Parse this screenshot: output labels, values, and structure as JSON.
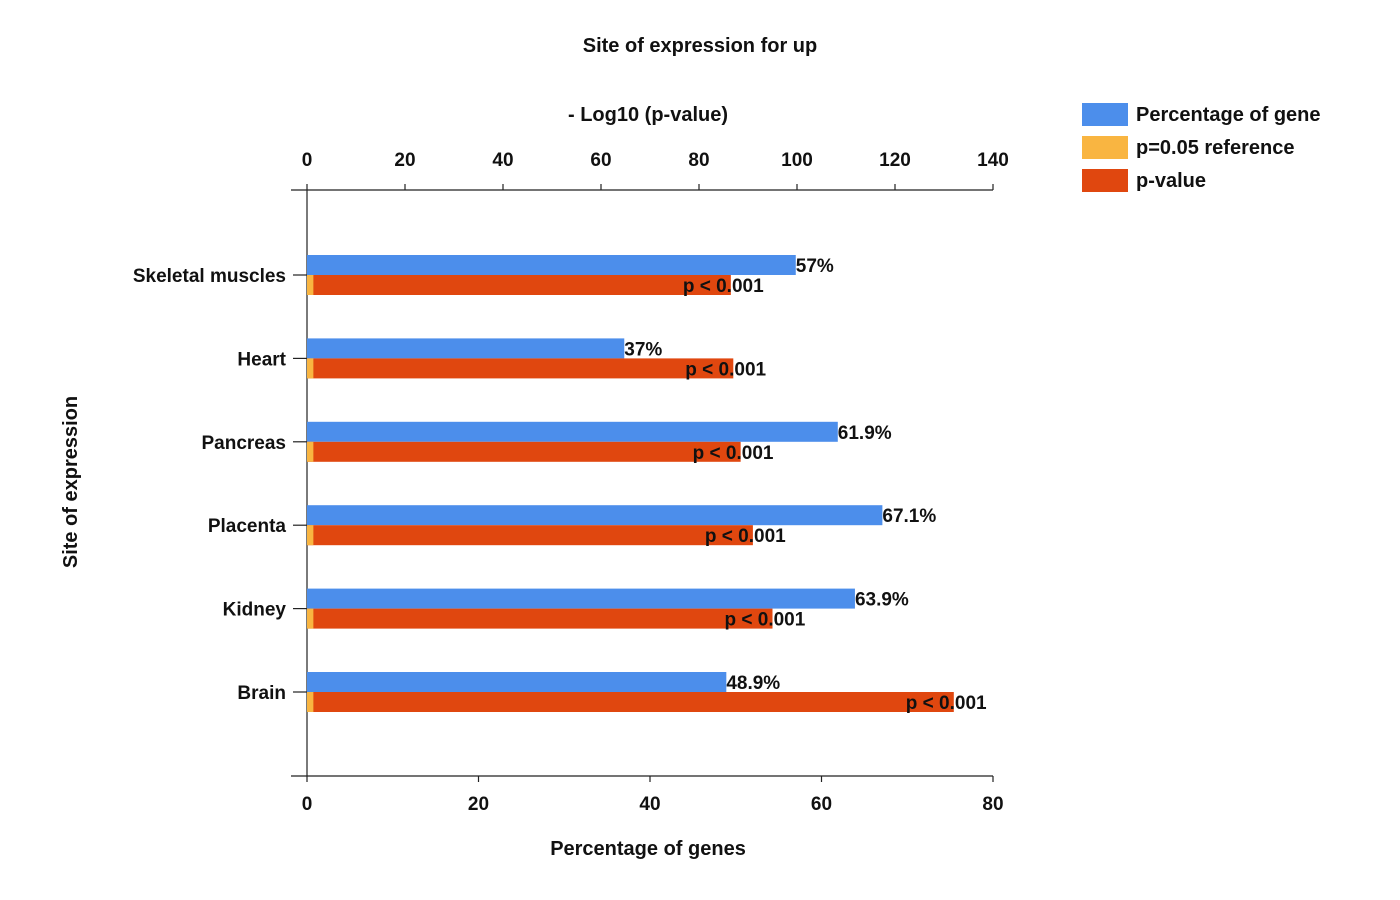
{
  "chart_data": {
    "type": "bar",
    "title": "Site of expression for up",
    "xlabel_bottom": "Percentage of genes",
    "xlabel_top": "- Log10 (p-value)",
    "ylabel": "Site of expression",
    "bottom_axis": {
      "range": [
        0,
        80
      ],
      "ticks": [
        "0",
        "20",
        "40",
        "60",
        "80"
      ]
    },
    "top_axis": {
      "range": [
        0,
        140
      ],
      "ticks": [
        "0",
        "20",
        "40",
        "60",
        "80",
        "100",
        "120",
        "140"
      ]
    },
    "categories": [
      "Skeletal muscles",
      "Heart",
      "Pancreas",
      "Placenta",
      "Kidney",
      "Brain"
    ],
    "series": [
      {
        "name": "Percentage of gene",
        "axis": "bottom",
        "color": "#4C8EEB",
        "values": [
          57,
          37,
          61.9,
          67.1,
          63.9,
          48.9
        ],
        "labels": [
          "57%",
          "37%",
          "61.9%",
          "67.1%",
          "63.9%",
          "48.9%"
        ]
      },
      {
        "name": "p=0.05 reference",
        "axis": "top",
        "color": "#F9B541",
        "values": [
          1.3,
          1.3,
          1.3,
          1.3,
          1.3,
          1.3
        ]
      },
      {
        "name": "p-value",
        "axis": "top",
        "color": "#E0470F",
        "values": [
          86.5,
          87,
          88.5,
          91,
          95,
          132
        ],
        "labels": [
          "p < 0.001",
          "p < 0.001",
          "p < 0.001",
          "p < 0.001",
          "p < 0.001",
          "p < 0.001"
        ]
      }
    ],
    "legend_position": "top-right",
    "grid": false
  }
}
